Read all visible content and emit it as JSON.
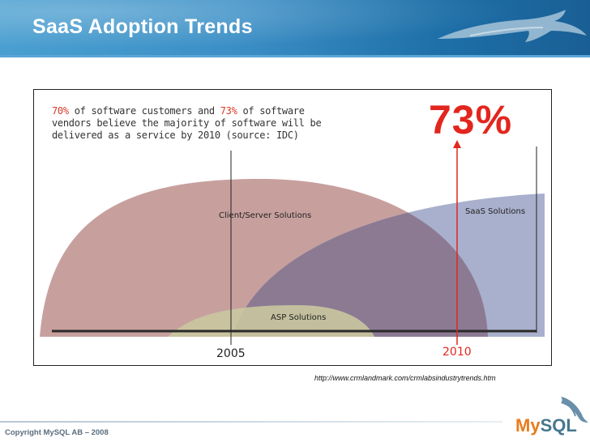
{
  "slide": {
    "title": "SaaS Adoption Trends",
    "copyright": "Copyright MySQL AB – 2008",
    "source_url": "http://www.crmlandmark.com/crmlabsindustrytrends.htm",
    "logo_part1": "My",
    "logo_part2": "SQL"
  },
  "diagram": {
    "headline": {
      "pct_customers": "70%",
      "text_a": " of software customers and ",
      "pct_vendors": "73%",
      "text_b": " of software\nvendors believe the majority of software will be\ndelivered as a service by 2010 (source: IDC)"
    },
    "big_percentage": "73%",
    "labels": {
      "client_server": "Client/Server Solutions",
      "saas": "SaaS  Solutions",
      "asp": "ASP Solutions"
    },
    "years": {
      "start": "2005",
      "end": "2010"
    },
    "colors": {
      "client_server": "#c7a09e",
      "saas": "#a9b0cd",
      "overlap": "#8c7a93",
      "asp": "#c9c7a0",
      "accent_red": "#e2261e"
    }
  }
}
